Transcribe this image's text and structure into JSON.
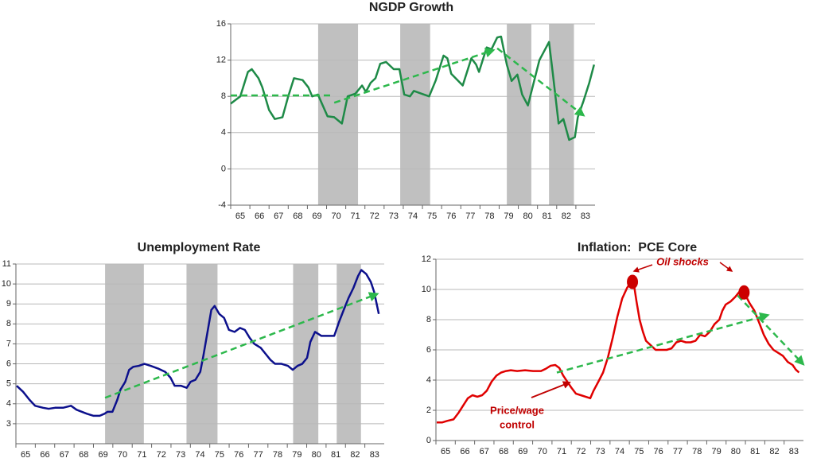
{
  "chart_data": [
    {
      "type": "line",
      "title": "NGDP Growth",
      "color": "#1e8a47",
      "trend_color": "#2db84c",
      "grid": true,
      "xlim": [
        65,
        84
      ],
      "xticks": [
        65,
        66,
        67,
        68,
        69,
        70,
        71,
        72,
        73,
        74,
        75,
        76,
        77,
        78,
        79,
        80,
        81,
        82,
        83
      ],
      "ylim": [
        -4,
        16
      ],
      "yticks": [
        -4,
        0,
        4,
        8,
        12,
        16
      ],
      "recessions": [
        [
          69.56,
          71.64
        ],
        [
          73.84,
          75.4
        ],
        [
          79.4,
          80.68
        ],
        [
          81.6,
          82.9
        ]
      ],
      "x": [
        65.0,
        65.5,
        65.9,
        66.1,
        66.45,
        66.65,
        67.0,
        67.3,
        67.7,
        68.0,
        68.3,
        68.75,
        69.05,
        69.25,
        69.55,
        69.8,
        70.05,
        70.4,
        70.8,
        71.1,
        71.5,
        71.85,
        72.05,
        72.3,
        72.55,
        72.8,
        73.1,
        73.5,
        73.8,
        74.05,
        74.35,
        74.55,
        74.95,
        75.35,
        75.7,
        76.1,
        76.3,
        76.5,
        77.1,
        77.55,
        77.8,
        77.95,
        78.35,
        78.6,
        78.9,
        79.1,
        79.4,
        79.65,
        79.95,
        80.2,
        80.5,
        81.1,
        81.6,
        81.8,
        82.1,
        82.35,
        82.65,
        82.95,
        83.1,
        83.4,
        83.7,
        83.95
      ],
      "values": [
        7.2,
        8.0,
        10.7,
        11.0,
        10.0,
        9.0,
        6.5,
        5.5,
        5.7,
        8.0,
        10.0,
        9.8,
        9.0,
        8.0,
        8.2,
        7.0,
        5.8,
        5.7,
        5.0,
        8.0,
        8.3,
        9.2,
        8.5,
        9.5,
        10.0,
        11.6,
        11.8,
        11.0,
        11.0,
        8.2,
        8.0,
        8.6,
        8.3,
        8.0,
        9.8,
        12.5,
        12.2,
        10.5,
        9.2,
        12.2,
        11.5,
        10.7,
        13.4,
        13.2,
        14.5,
        14.6,
        11.5,
        9.7,
        10.4,
        8.2,
        7.0,
        12.0,
        14.0,
        10.5,
        5.0,
        5.5,
        3.2,
        3.5,
        5.7,
        7.5,
        9.5,
        11.5
      ],
      "trends": [
        {
          "x": [
            65,
            70.27
          ],
          "values": [
            8.1,
            8.1
          ],
          "arrow": false
        },
        {
          "x": [
            70.4,
            78.7
          ],
          "values": [
            7.3,
            13.1
          ],
          "arrow": true
        },
        {
          "x": [
            78.9,
            83.4
          ],
          "values": [
            13.3,
            5.9
          ],
          "arrow": true
        }
      ]
    },
    {
      "type": "line",
      "title": "Unemployment Rate",
      "color": "#0c108c",
      "trend_color": "#2db84c",
      "grid": true,
      "xlim": [
        65,
        84
      ],
      "xticks": [
        65,
        66,
        67,
        68,
        69,
        70,
        71,
        72,
        73,
        74,
        75,
        76,
        77,
        78,
        79,
        80,
        81,
        82,
        83
      ],
      "ylim": [
        2,
        11
      ],
      "yticks": [
        3,
        4,
        5,
        6,
        7,
        8,
        9,
        10,
        11
      ],
      "recessions": [
        [
          69.6,
          71.6
        ],
        [
          73.8,
          75.4
        ],
        [
          79.3,
          80.6
        ],
        [
          81.55,
          82.8
        ]
      ],
      "x": [
        65.04,
        65.37,
        65.7,
        65.99,
        66.4,
        66.69,
        67.02,
        67.43,
        67.84,
        68.13,
        68.66,
        68.99,
        69.32,
        69.57,
        69.73,
        69.98,
        70.23,
        70.39,
        70.64,
        70.84,
        71.05,
        71.34,
        71.63,
        71.95,
        72.37,
        72.7,
        72.98,
        73.19,
        73.52,
        73.81,
        74.01,
        74.26,
        74.51,
        74.67,
        74.92,
        75.08,
        75.25,
        75.49,
        75.74,
        75.99,
        76.28,
        76.56,
        76.81,
        77.06,
        77.3,
        77.63,
        77.88,
        78.13,
        78.37,
        78.7,
        79.03,
        79.28,
        79.53,
        79.77,
        80.02,
        80.19,
        80.43,
        80.6,
        80.76,
        81.09,
        81.42,
        81.67,
        81.91,
        82.16,
        82.41,
        82.65,
        82.82,
        83.07,
        83.31,
        83.48,
        83.72
      ],
      "values": [
        4.9,
        4.6,
        4.2,
        3.9,
        3.8,
        3.75,
        3.8,
        3.8,
        3.9,
        3.7,
        3.5,
        3.4,
        3.4,
        3.5,
        3.6,
        3.6,
        4.2,
        4.7,
        5.1,
        5.7,
        5.85,
        5.9,
        6.0,
        5.9,
        5.75,
        5.6,
        5.3,
        4.9,
        4.9,
        4.8,
        5.1,
        5.2,
        5.6,
        6.4,
        7.8,
        8.7,
        8.9,
        8.5,
        8.3,
        7.7,
        7.6,
        7.8,
        7.7,
        7.3,
        7.0,
        6.8,
        6.5,
        6.2,
        6.0,
        6.0,
        5.9,
        5.7,
        5.9,
        6.0,
        6.3,
        7.1,
        7.6,
        7.5,
        7.4,
        7.4,
        7.4,
        8.1,
        8.7,
        9.3,
        9.8,
        10.4,
        10.7,
        10.5,
        10.1,
        9.6,
        8.5
      ],
      "trends": [
        {
          "x": [
            69.6,
            83.64
          ],
          "values": [
            4.3,
            9.5
          ],
          "arrow": true
        }
      ]
    },
    {
      "type": "line",
      "title": "Inflation:  PCE Core",
      "color": "#e00000",
      "trend_color": "#2db84c",
      "grid": true,
      "xlim": [
        65,
        84
      ],
      "xticks": [
        65,
        66,
        67,
        68,
        69,
        70,
        71,
        72,
        73,
        74,
        75,
        76,
        77,
        78,
        79,
        80,
        81,
        82,
        83
      ],
      "ylim": [
        0,
        12
      ],
      "yticks": [
        0,
        2,
        4,
        6,
        8,
        10,
        12
      ],
      "x": [
        65.04,
        65.33,
        65.58,
        65.91,
        66.15,
        66.4,
        66.65,
        66.89,
        67.14,
        67.39,
        67.63,
        67.88,
        68.13,
        68.37,
        68.62,
        68.87,
        69.2,
        69.61,
        70.02,
        70.43,
        70.68,
        70.93,
        71.17,
        71.38,
        71.58,
        71.79,
        72.0,
        72.24,
        72.49,
        72.74,
        72.98,
        73.15,
        73.4,
        73.64,
        73.89,
        74.14,
        74.38,
        74.63,
        74.88,
        75.04,
        75.25,
        75.37,
        75.53,
        75.7,
        75.86,
        76.11,
        76.36,
        76.6,
        76.93,
        77.18,
        77.43,
        77.67,
        77.92,
        78.17,
        78.42,
        78.66,
        78.91,
        79.16,
        79.4,
        79.65,
        79.81,
        79.98,
        80.23,
        80.47,
        80.72,
        80.97,
        81.21,
        81.46,
        81.71,
        81.95,
        82.2,
        82.45,
        82.7,
        82.94,
        83.19,
        83.44,
        83.6,
        83.77
      ],
      "values": [
        1.2,
        1.2,
        1.3,
        1.4,
        1.8,
        2.3,
        2.8,
        3.0,
        2.9,
        3.0,
        3.3,
        3.9,
        4.3,
        4.5,
        4.6,
        4.65,
        4.6,
        4.65,
        4.6,
        4.6,
        4.75,
        4.95,
        5.0,
        4.8,
        4.3,
        3.9,
        3.5,
        3.1,
        3.0,
        2.9,
        2.8,
        3.3,
        3.9,
        4.5,
        5.5,
        6.8,
        8.2,
        9.4,
        10.1,
        10.4,
        10.2,
        9.2,
        8.0,
        7.2,
        6.6,
        6.3,
        6.0,
        6.0,
        6.0,
        6.1,
        6.5,
        6.6,
        6.5,
        6.5,
        6.6,
        7.0,
        6.9,
        7.2,
        7.7,
        8.0,
        8.6,
        9.0,
        9.2,
        9.5,
        9.9,
        9.7,
        9.1,
        8.6,
        7.8,
        7.0,
        6.4,
        6.0,
        5.8,
        5.6,
        5.2,
        5.0,
        4.7,
        4.5
      ],
      "trends": [
        {
          "x": [
            71.25,
            82.16
          ],
          "values": [
            4.5,
            8.3
          ],
          "arrow": true
        },
        {
          "x": [
            80.6,
            83.99
          ],
          "values": [
            9.6,
            5.05
          ],
          "arrow": true
        }
      ],
      "highlights": [
        {
          "x": 75.16,
          "y": 10.5
        },
        {
          "x": 80.93,
          "y": 9.8
        }
      ],
      "annotations": {
        "oil": "Oil shocks",
        "price": [
          "Price/wage",
          "control"
        ]
      }
    }
  ]
}
